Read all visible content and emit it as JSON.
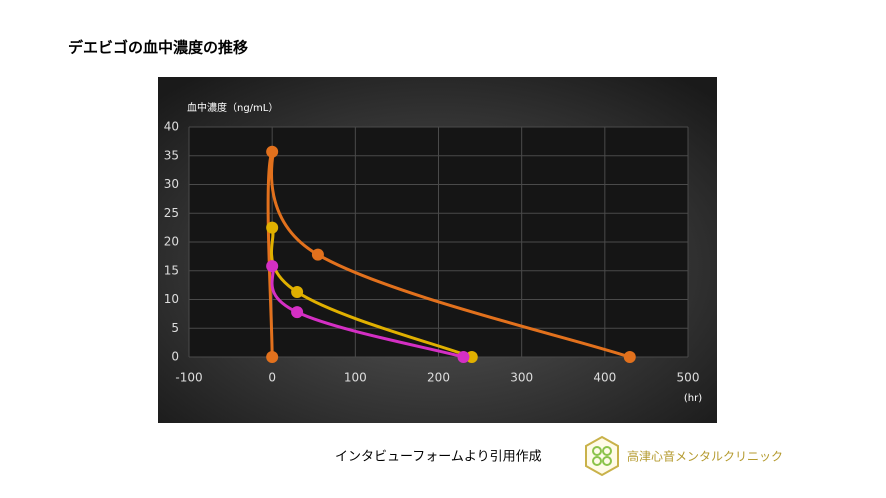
{
  "chart_data": {
    "type": "scatter",
    "title": "デエビゴの血中濃度の推移",
    "y_label": "血中濃度（ng/mL）",
    "x_label": "(hr)",
    "note": "インタビューフォームより引用作成",
    "brand": "高津心音メンタルクリニック",
    "xlim": [
      -100,
      500
    ],
    "xticks": [
      -100,
      0,
      100,
      200,
      300,
      400,
      500
    ],
    "ylim": [
      0,
      40
    ],
    "yticks": [
      0,
      5,
      10,
      15,
      20,
      25,
      30,
      35,
      40
    ],
    "grid": true,
    "series": [
      {
        "color": "#e2711d",
        "x": [
          0,
          0,
          55,
          430
        ],
        "values": [
          0,
          35.7,
          17.8,
          0
        ]
      },
      {
        "color": "#e0b000",
        "x": [
          0,
          30,
          240
        ],
        "values": [
          22.5,
          11.3,
          0
        ]
      },
      {
        "color": "#d42fc4",
        "x": [
          0,
          30,
          230
        ],
        "values": [
          15.8,
          7.8,
          0
        ]
      }
    ]
  }
}
